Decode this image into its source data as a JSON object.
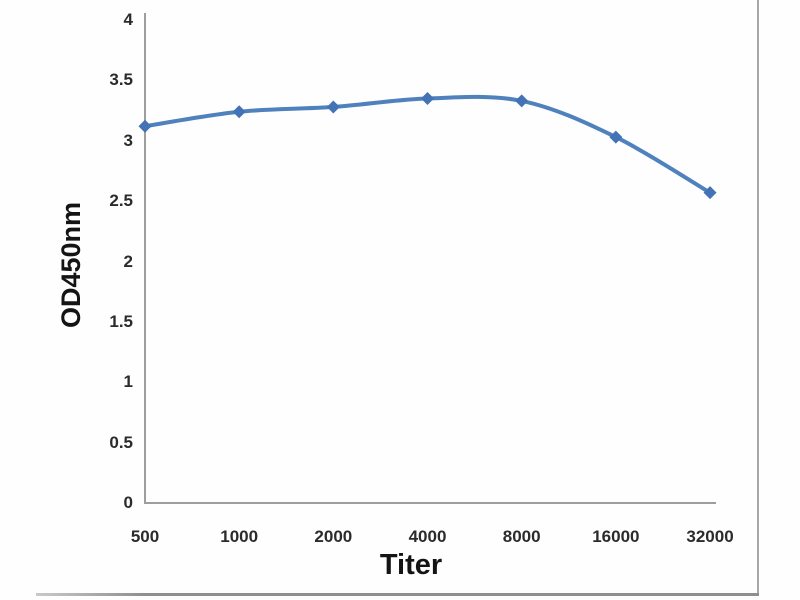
{
  "chart_data": {
    "type": "line",
    "title": "",
    "xlabel": "Titer",
    "ylabel": "OD450nm",
    "categories": [
      "500",
      "1000",
      "2000",
      "4000",
      "8000",
      "16000",
      "32000"
    ],
    "series": [
      {
        "name": "OD450nm",
        "values": [
          3.12,
          3.24,
          3.28,
          3.35,
          3.33,
          3.03,
          2.57
        ]
      }
    ],
    "y_ticks": [
      "0",
      "0.5",
      "1",
      "1.5",
      "2",
      "2.5",
      "3",
      "3.5",
      "4"
    ],
    "ylim": [
      0,
      4
    ],
    "grid": false,
    "legend_position": "none",
    "line_smoothed": true,
    "marker_shape": "diamond",
    "colors": {
      "line": "#4f81bd",
      "marker": "#4373b5",
      "axis": "#9e9e9e",
      "tick_text": "#2b2b2b",
      "title_text": "#141414",
      "frame_border": "#8f8f8f"
    }
  }
}
